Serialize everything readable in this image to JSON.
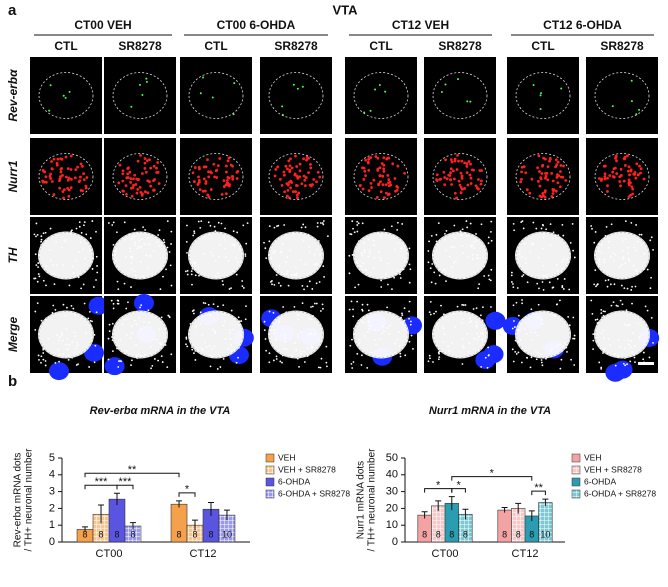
{
  "panel_a": {
    "label": "a",
    "title": "VTA",
    "groups": [
      {
        "name": "CT00 VEH",
        "columns": [
          "CTL",
          "SR8278"
        ]
      },
      {
        "name": "CT00 6-OHDA",
        "columns": [
          "CTL",
          "SR8278"
        ]
      },
      {
        "name": "CT12 VEH",
        "columns": [
          "CTL",
          "SR8278"
        ]
      },
      {
        "name": "CT12 6-OHDA",
        "columns": [
          "CTL",
          "SR8278"
        ]
      }
    ],
    "rows": [
      {
        "label": "Rev-erbα",
        "color": "#2db34a"
      },
      {
        "label": "Nurr1",
        "color": "#e02020"
      },
      {
        "label": "TH",
        "color": "#111111"
      },
      {
        "label": "Merge",
        "color": "#111111"
      }
    ]
  },
  "panel_b": {
    "label": "b"
  },
  "chart_data": [
    {
      "type": "bar",
      "title": "Rev-erbα mRNA in the VTA",
      "ylabel": [
        "Rev-erbα mRNA dots",
        "/ TH+ neuronal number"
      ],
      "categories": [
        "CT00",
        "CT12"
      ],
      "ylim": [
        0,
        5
      ],
      "yticks": [
        0,
        1,
        2,
        3,
        4,
        5
      ],
      "legend": "right",
      "series": [
        {
          "name": "VEH",
          "color": "#f5a04a",
          "hatch": false,
          "values": [
            0.75,
            2.25
          ],
          "errors": [
            0.15,
            0.2
          ],
          "n": [
            "8",
            "8"
          ]
        },
        {
          "name": "VEH + SR8278",
          "color": "#f8c690",
          "hatch": true,
          "values": [
            1.65,
            1.0
          ],
          "errors": [
            0.55,
            0.3
          ],
          "n": [
            "8",
            "8"
          ]
        },
        {
          "name": "6-OHDA",
          "color": "#5a55e0",
          "hatch": false,
          "values": [
            2.55,
            1.95
          ],
          "errors": [
            0.35,
            0.4
          ],
          "n": [
            "8",
            "8"
          ]
        },
        {
          "name": "6-OHDA + SR8278",
          "color": "#9a98f0",
          "hatch": true,
          "values": [
            0.95,
            1.6
          ],
          "errors": [
            0.2,
            0.3
          ],
          "n": [
            "8",
            "10"
          ]
        }
      ],
      "significance": [
        {
          "text": "*",
          "from": [
            1,
            0
          ],
          "to": [
            1,
            1
          ]
        },
        {
          "text": "***",
          "from": [
            0,
            2
          ],
          "to": [
            0,
            3
          ]
        },
        {
          "text": "***",
          "from": [
            0,
            0
          ],
          "to": [
            0,
            2
          ]
        },
        {
          "text": "**",
          "from": [
            0,
            0
          ],
          "to": [
            1,
            0
          ]
        }
      ]
    },
    {
      "type": "bar",
      "title": "Nurr1 mRNA in the VTA",
      "ylabel": [
        "Nurr1 mRNA dots",
        "/ TH+ neuronal number"
      ],
      "categories": [
        "CT00",
        "CT12"
      ],
      "ylim": [
        0,
        50
      ],
      "yticks": [
        0,
        10,
        20,
        30,
        40,
        50
      ],
      "legend": "right",
      "series": [
        {
          "name": "VEH",
          "color": "#f4a3a3",
          "hatch": false,
          "values": [
            16,
            19
          ],
          "errors": [
            2,
            1.5
          ],
          "n": [
            "8",
            "8"
          ]
        },
        {
          "name": "VEH + SR8278",
          "color": "#f8c8c8",
          "hatch": true,
          "values": [
            21.5,
            20
          ],
          "errors": [
            3,
            3
          ],
          "n": [
            "8",
            "8"
          ]
        },
        {
          "name": "6-OHDA",
          "color": "#2a9db0",
          "hatch": false,
          "values": [
            23,
            15.5
          ],
          "errors": [
            4,
            3
          ],
          "n": [
            "8",
            "8"
          ]
        },
        {
          "name": "6-OHDA + SR8278",
          "color": "#7cc8d4",
          "hatch": true,
          "values": [
            16.5,
            23.5
          ],
          "errors": [
            3,
            2
          ],
          "n": [
            "8",
            "10"
          ]
        }
      ],
      "significance": [
        {
          "text": "*",
          "from": [
            0,
            2
          ],
          "to": [
            0,
            3
          ]
        },
        {
          "text": "**",
          "from": [
            1,
            2
          ],
          "to": [
            1,
            3
          ]
        },
        {
          "text": "*",
          "from": [
            0,
            0
          ],
          "to": [
            0,
            2
          ]
        },
        {
          "text": "*",
          "from": [
            0,
            2
          ],
          "to": [
            1,
            2
          ]
        }
      ]
    }
  ]
}
